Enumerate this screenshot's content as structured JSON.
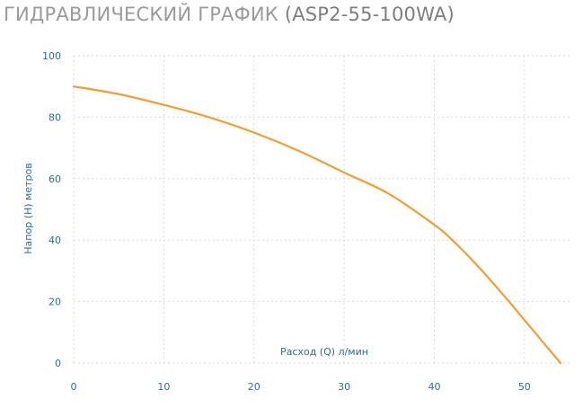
{
  "header": {
    "title_main": "ГИДРАВЛИЧЕСКИЙ ГРАФИК",
    "title_model": "(ASP2-55-100WA)"
  },
  "colors": {
    "curve": "#f0a030",
    "tick_text": "#2a6f9a",
    "grid": "#d9d9d9"
  },
  "chart_data": {
    "type": "line",
    "title": "ГИДРАВЛИЧЕСКИЙ ГРАФИК (ASP2-55-100WA)",
    "xlabel": "Расход (Q) л/мин",
    "ylabel": "Напор (H) метров",
    "xlim": [
      0,
      55
    ],
    "ylim": [
      0,
      100
    ],
    "xticks": [
      0,
      10,
      20,
      30,
      40,
      50
    ],
    "yticks": [
      0,
      20,
      40,
      60,
      80,
      100
    ],
    "grid": true,
    "series": [
      {
        "x": [
          0,
          5,
          10,
          15,
          20,
          25,
          30,
          35,
          40,
          42,
          45,
          48,
          50,
          52,
          54
        ],
        "y": [
          90,
          87.5,
          84,
          80,
          75,
          69,
          62,
          55,
          45,
          40,
          31,
          21,
          14,
          7,
          0
        ]
      }
    ]
  }
}
